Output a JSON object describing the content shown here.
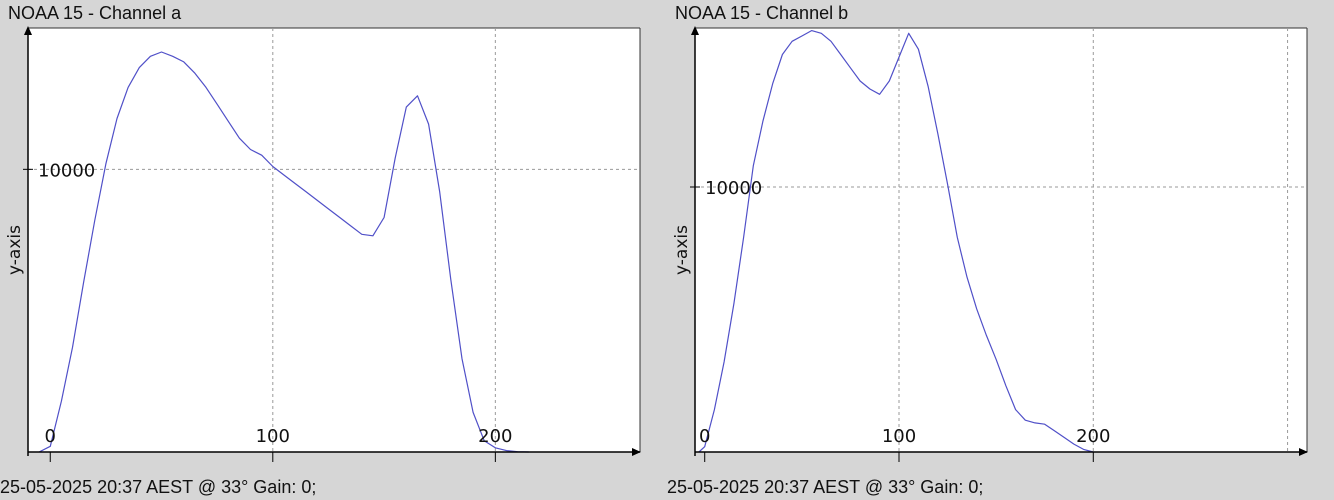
{
  "panels": [
    {
      "title": "NOAA 15 - Channel a",
      "footer": "25-05-2025 20:37 AEST @ 33° Gain: 0;",
      "ylabel": "y-axis"
    },
    {
      "title": "NOAA 15 - Channel b",
      "footer": "25-05-2025 20:37 AEST @ 33° Gain: 0;",
      "ylabel": "y-axis"
    }
  ],
  "colors": {
    "series": "#5050c8",
    "grid": "#9a9a9a",
    "background": "#ffffff",
    "window": "#d6d6d6"
  },
  "chart_data": [
    {
      "type": "line",
      "title": "NOAA 15 - Channel a",
      "xlabel": "",
      "ylabel": "y-axis",
      "xlim": [
        -10,
        265
      ],
      "ylim": [
        0,
        15000
      ],
      "x_ticks": [
        0,
        100,
        200
      ],
      "y_ticks": [
        10000
      ],
      "grid": true,
      "series": [
        {
          "x": [
            -5,
            0,
            5,
            10,
            15,
            20,
            25,
            30,
            35,
            40,
            45,
            50,
            55,
            60,
            65,
            70,
            75,
            80,
            85,
            90,
            95,
            100,
            105,
            110,
            115,
            120,
            125,
            130,
            135,
            140,
            145,
            150,
            155,
            160,
            165,
            170,
            175,
            180,
            185,
            190,
            195,
            200,
            205,
            210,
            215
          ],
          "y": [
            0,
            200,
            1800,
            3700,
            6000,
            8200,
            10200,
            11800,
            12900,
            13600,
            14000,
            14150,
            14000,
            13800,
            13400,
            12900,
            12300,
            11700,
            11100,
            10700,
            10500,
            10100,
            9800,
            9500,
            9200,
            8900,
            8600,
            8300,
            8000,
            7700,
            7650,
            8300,
            10400,
            12200,
            12600,
            11600,
            9200,
            6100,
            3300,
            1400,
            400,
            150,
            50,
            10,
            0
          ]
        }
      ]
    },
    {
      "type": "line",
      "title": "NOAA 15 - Channel b",
      "xlabel": "",
      "ylabel": "y-axis",
      "xlim": [
        -5,
        310
      ],
      "ylim": [
        0,
        16000
      ],
      "x_ticks": [
        0,
        100,
        200
      ],
      "y_ticks": [
        10000
      ],
      "grid": true,
      "series": [
        {
          "x": [
            -3,
            0,
            5,
            10,
            15,
            20,
            25,
            30,
            35,
            40,
            45,
            50,
            55,
            60,
            65,
            70,
            75,
            80,
            85,
            90,
            95,
            100,
            105,
            110,
            115,
            120,
            125,
            130,
            135,
            140,
            145,
            150,
            155,
            160,
            165,
            170,
            175,
            180,
            185,
            190,
            195,
            200
          ],
          "y": [
            0,
            200,
            1600,
            3400,
            5600,
            8100,
            10800,
            12500,
            13900,
            15000,
            15500,
            15700,
            15900,
            15800,
            15500,
            15000,
            14500,
            14000,
            13700,
            13500,
            14000,
            14900,
            15800,
            15200,
            13800,
            12000,
            10100,
            8100,
            6600,
            5400,
            4400,
            3500,
            2500,
            1600,
            1200,
            1100,
            1050,
            800,
            550,
            300,
            100,
            0
          ]
        }
      ]
    }
  ]
}
